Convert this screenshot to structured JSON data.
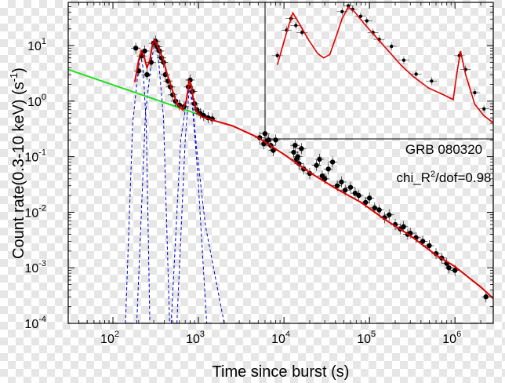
{
  "colors": {
    "data_points": "#000000",
    "fit_line": "#dd0000",
    "power_law": "#22dd22",
    "flare_components": "#0000cc",
    "background_checker": "#e6e6e6"
  },
  "chart_data": {
    "type": "scatter",
    "scale": {
      "x": "log",
      "y": "log"
    },
    "xlim": [
      30,
      2800000
    ],
    "ylim": [
      0.0001,
      60
    ],
    "xlabel": "Time since burst (s)",
    "ylabel": "Count rate(0.3-10 keV) (s",
    "ylabel_superscript": "-1",
    "ylabel_tail": ")",
    "x_ticks": [
      {
        "value": 100,
        "base": "10",
        "exp": "2"
      },
      {
        "value": 1000,
        "base": "10",
        "exp": "3"
      },
      {
        "value": 10000,
        "base": "10",
        "exp": "4"
      },
      {
        "value": 100000,
        "base": "10",
        "exp": "5"
      },
      {
        "value": 1000000,
        "base": "10",
        "exp": "6"
      }
    ],
    "y_ticks": [
      {
        "value": 10,
        "base": "10",
        "exp": "1"
      },
      {
        "value": 1,
        "base": "10",
        "exp": "0"
      },
      {
        "value": 0.1,
        "base": "10",
        "exp": "-1"
      },
      {
        "value": 0.01,
        "base": "10",
        "exp": "-2"
      },
      {
        "value": 0.001,
        "base": "10",
        "exp": "-3"
      },
      {
        "value": 0.0001,
        "base": "10",
        "exp": "-4"
      }
    ],
    "annotation": {
      "line1": "GRB 080320",
      "line2_a": "chi_R",
      "line2_sup": "2",
      "line2_b": "/dof=0.98"
    },
    "power_law_line": {
      "points": [
        [
          30,
          3.7
        ],
        [
          1100,
          0.55
        ]
      ]
    },
    "fit_curve": {
      "points": [
        [
          180,
          2.2
        ],
        [
          200,
          5.5
        ],
        [
          215,
          8.0
        ],
        [
          230,
          6.5
        ],
        [
          250,
          4.0
        ],
        [
          270,
          5.5
        ],
        [
          290,
          10.5
        ],
        [
          310,
          12.5
        ],
        [
          340,
          9.0
        ],
        [
          380,
          6.0
        ],
        [
          420,
          3.5
        ],
        [
          480,
          1.8
        ],
        [
          560,
          0.9
        ],
        [
          650,
          0.7
        ],
        [
          720,
          1.0
        ],
        [
          780,
          2.3
        ],
        [
          820,
          2.0
        ],
        [
          870,
          1.1
        ],
        [
          950,
          0.65
        ],
        [
          1100,
          0.52
        ],
        [
          1500,
          0.45
        ],
        [
          2500,
          0.36
        ],
        [
          5000,
          0.22
        ],
        [
          10000,
          0.11
        ],
        [
          20000,
          0.052
        ],
        [
          40000,
          0.027
        ],
        [
          80000,
          0.015
        ],
        [
          150000,
          0.0075
        ],
        [
          300000,
          0.0038
        ],
        [
          600000,
          0.0017
        ],
        [
          1000000,
          0.00105
        ],
        [
          2000000,
          0.00045
        ],
        [
          2800000,
          0.00028
        ]
      ]
    },
    "flare_components": [
      {
        "points": [
          [
            140,
            0.0001
          ],
          [
            170,
            0.4
          ],
          [
            195,
            3.0
          ],
          [
            210,
            7.0
          ],
          [
            225,
            4.0
          ],
          [
            245,
            0.4
          ],
          [
            270,
            0.0001
          ]
        ]
      },
      {
        "points": [
          [
            190,
            0.0001
          ],
          [
            240,
            0.6
          ],
          [
            280,
            5.0
          ],
          [
            310,
            12.0
          ],
          [
            340,
            6.0
          ],
          [
            390,
            0.5
          ],
          [
            460,
            0.0001
          ]
        ]
      },
      {
        "points": [
          [
            480,
            0.0001
          ],
          [
            620,
            0.2
          ],
          [
            740,
            1.2
          ],
          [
            790,
            1.8
          ],
          [
            850,
            0.8
          ],
          [
            980,
            0.05
          ],
          [
            1250,
            0.0001
          ]
        ]
      },
      {
        "points": [
          [
            560,
            0.0001
          ],
          [
            700,
            0.2
          ],
          [
            780,
            1.6
          ],
          [
            830,
            1.4
          ],
          [
            950,
            0.15
          ],
          [
            1200,
            0.006
          ],
          [
            2000,
            0.0001
          ]
        ]
      }
    ],
    "series": [
      {
        "points": [
          [
            185,
            9.0
          ],
          [
            200,
            3.5
          ],
          [
            215,
            6.5
          ],
          [
            235,
            8.0
          ],
          [
            250,
            3.0
          ],
          [
            280,
            5.0
          ],
          [
            300,
            11.0
          ],
          [
            315,
            12.0
          ],
          [
            330,
            9.5
          ],
          [
            350,
            8.0
          ],
          [
            370,
            6.0
          ],
          [
            390,
            5.0
          ],
          [
            410,
            3.0
          ],
          [
            440,
            2.3
          ],
          [
            470,
            1.8
          ],
          [
            500,
            1.3
          ],
          [
            540,
            1.0
          ],
          [
            600,
            0.85
          ],
          [
            680,
            0.8
          ],
          [
            760,
            1.8
          ],
          [
            800,
            2.4
          ],
          [
            850,
            1.5
          ],
          [
            900,
            0.9
          ],
          [
            960,
            0.7
          ],
          [
            1050,
            0.6
          ],
          [
            1150,
            0.55
          ],
          [
            1300,
            0.5
          ],
          [
            1450,
            0.48
          ],
          [
            5200,
            0.22
          ],
          [
            5800,
            0.17
          ],
          [
            6000,
            0.26
          ],
          [
            6300,
            0.19
          ],
          [
            6600,
            0.2
          ],
          [
            7000,
            0.16
          ],
          [
            7500,
            0.13
          ],
          [
            8000,
            0.2
          ],
          [
            13000,
            0.12
          ],
          [
            13500,
            0.16
          ],
          [
            14000,
            0.09
          ],
          [
            14500,
            0.1
          ],
          [
            15000,
            0.075
          ],
          [
            16000,
            0.14
          ],
          [
            17000,
            0.06
          ],
          [
            20000,
            0.05
          ],
          [
            24000,
            0.07
          ],
          [
            26000,
            0.09
          ],
          [
            28000,
            0.045
          ],
          [
            30000,
            0.04
          ],
          [
            33000,
            0.06
          ],
          [
            37000,
            0.08
          ],
          [
            42000,
            0.03
          ],
          [
            47000,
            0.035
          ],
          [
            52000,
            0.025
          ],
          [
            60000,
            0.028
          ],
          [
            68000,
            0.022
          ],
          [
            75000,
            0.02
          ],
          [
            90000,
            0.015
          ],
          [
            100000,
            0.018
          ],
          [
            115000,
            0.012
          ],
          [
            130000,
            0.011
          ],
          [
            150000,
            0.008
          ],
          [
            170000,
            0.009
          ],
          [
            200000,
            0.006
          ],
          [
            230000,
            0.005
          ],
          [
            250000,
            0.0055
          ],
          [
            280000,
            0.004
          ],
          [
            300000,
            0.0042
          ],
          [
            350000,
            0.0035
          ],
          [
            420000,
            0.003
          ],
          [
            500000,
            0.0025
          ],
          [
            600000,
            0.0018
          ],
          [
            700000,
            0.0015
          ],
          [
            800000,
            0.0012
          ],
          [
            850000,
            0.001
          ],
          [
            1000000,
            0.0009
          ],
          [
            2300000,
            0.0003
          ]
        ]
      }
    ],
    "inset": {
      "xlim_log": [
        2.7,
        6.4
      ],
      "ylim_log": [
        -4.0,
        1.9
      ],
      "curve": [
        [
          2.9,
          -0.8
        ],
        [
          3.05,
          0.6
        ],
        [
          3.15,
          1.45
        ],
        [
          3.25,
          1.0
        ],
        [
          3.4,
          0.3
        ],
        [
          3.55,
          -0.3
        ],
        [
          3.65,
          -0.5
        ],
        [
          3.75,
          -0.35
        ],
        [
          3.85,
          0.4
        ],
        [
          3.95,
          1.2
        ],
        [
          4.05,
          1.7
        ],
        [
          4.15,
          1.5
        ],
        [
          4.3,
          1.0
        ],
        [
          4.5,
          0.4
        ],
        [
          4.7,
          -0.2
        ],
        [
          4.9,
          -0.8
        ],
        [
          5.1,
          -1.3
        ],
        [
          5.35,
          -1.8
        ],
        [
          5.6,
          -2.1
        ],
        [
          5.75,
          -2.3
        ],
        [
          5.82,
          -1.0
        ],
        [
          5.87,
          -0.2
        ],
        [
          5.95,
          -1.2
        ],
        [
          6.1,
          -2.5
        ],
        [
          6.25,
          -3.0
        ],
        [
          6.4,
          -3.3
        ]
      ],
      "points": [
        [
          2.9,
          -0.4
        ],
        [
          3.05,
          0.7
        ],
        [
          3.12,
          1.2
        ],
        [
          3.2,
          0.9
        ],
        [
          3.3,
          0.6
        ],
        [
          3.95,
          1.5
        ],
        [
          4.05,
          1.75
        ],
        [
          4.12,
          1.6
        ],
        [
          4.25,
          1.3
        ],
        [
          4.35,
          1.1
        ],
        [
          4.45,
          0.6
        ],
        [
          4.55,
          0.3
        ],
        [
          4.75,
          0.0
        ],
        [
          4.95,
          -0.6
        ],
        [
          5.15,
          -1.2
        ],
        [
          5.4,
          -1.5
        ],
        [
          5.85,
          -0.4
        ],
        [
          5.95,
          -1.0
        ],
        [
          6.1,
          -2.0
        ],
        [
          6.25,
          -2.7
        ]
      ]
    }
  }
}
